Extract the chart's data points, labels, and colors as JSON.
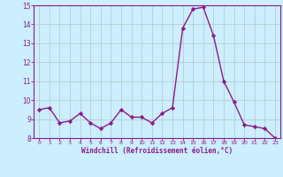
{
  "x": [
    0,
    1,
    2,
    3,
    4,
    5,
    6,
    7,
    8,
    9,
    10,
    11,
    12,
    13,
    14,
    15,
    16,
    17,
    18,
    19,
    20,
    21,
    22,
    23
  ],
  "y": [
    9.5,
    9.6,
    8.8,
    8.9,
    9.3,
    8.8,
    8.5,
    8.8,
    9.5,
    9.1,
    9.1,
    8.8,
    9.3,
    9.6,
    13.8,
    14.8,
    14.9,
    13.4,
    11.0,
    9.9,
    8.7,
    8.6,
    8.5,
    8.0
  ],
  "line_color": "#8b1a8b",
  "marker": "D",
  "marker_size": 2.2,
  "linewidth": 1.0,
  "bg_color": "#cceeff",
  "grid_color": "#b0c8c8",
  "xlabel": "Windchill (Refroidissement éolien,°C)",
  "xlabel_color": "#8b1a8b",
  "tick_color": "#8b1a8b",
  "ylim": [
    8,
    15
  ],
  "xlim": [
    -0.5,
    23.5
  ],
  "yticks": [
    8,
    9,
    10,
    11,
    12,
    13,
    14,
    15
  ],
  "xticks": [
    0,
    1,
    2,
    3,
    4,
    5,
    6,
    7,
    8,
    9,
    10,
    11,
    12,
    13,
    14,
    15,
    16,
    17,
    18,
    19,
    20,
    21,
    22,
    23
  ],
  "xtick_labels": [
    "0",
    "1",
    "2",
    "3",
    "4",
    "5",
    "6",
    "7",
    "8",
    "9",
    "10",
    "11",
    "12",
    "13",
    "14",
    "15",
    "16",
    "17",
    "18",
    "19",
    "20",
    "21",
    "22",
    "23"
  ]
}
